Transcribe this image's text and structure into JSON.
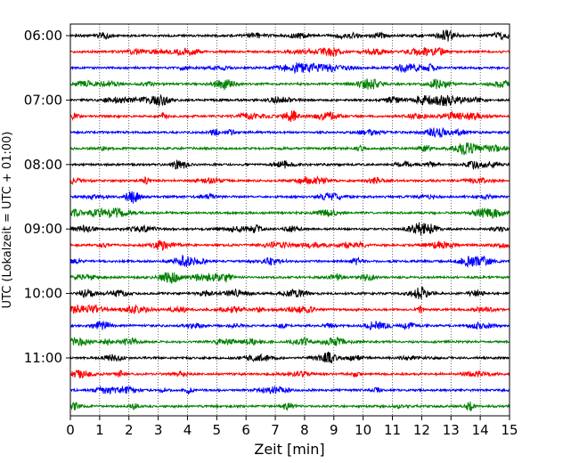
{
  "chart_data": {
    "type": "line",
    "title": "",
    "xlabel": "Zeit  [min]",
    "ylabel": "UTC (Lokalzeit = UTC + 01:00)",
    "xlim": [
      0,
      15
    ],
    "x_ticks": [
      "0",
      "1",
      "2",
      "3",
      "4",
      "5",
      "6",
      "7",
      "8",
      "9",
      "10",
      "11",
      "12",
      "13",
      "14",
      "15"
    ],
    "y_ticks": [
      "06:00",
      "07:00",
      "08:00",
      "09:00",
      "10:00",
      "11:00"
    ],
    "row_start": "06:00",
    "row_step_minutes": 15,
    "row_count": 24,
    "colors": [
      "#000000",
      "#ff0000",
      "#0000ff",
      "#008000"
    ],
    "grid": "vertical dotted at each minute",
    "legend": "none"
  }
}
